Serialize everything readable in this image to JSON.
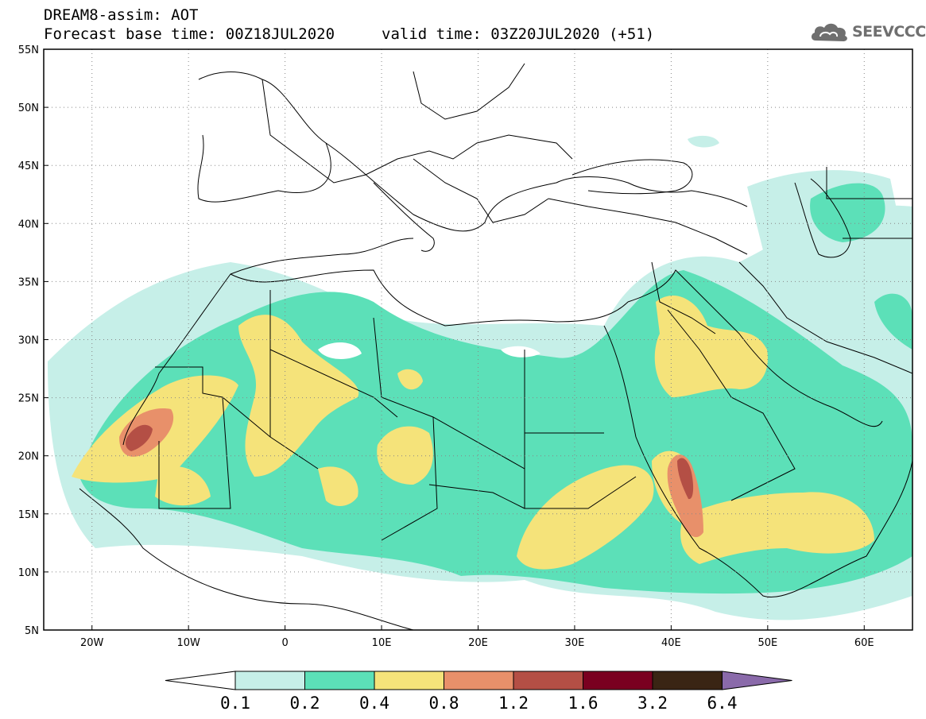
{
  "header": {
    "title": "DREAM8-assim: AOT",
    "forecast_base": "Forecast base time: 00Z18JUL2020",
    "valid_time": "valid time: 03Z20JUL2020 (+51)"
  },
  "logo": {
    "text": "SEEVCCC",
    "icon": "cloud-icon"
  },
  "map": {
    "lon_range": [
      -25,
      65
    ],
    "lat_range": [
      5,
      55
    ],
    "lat_labels": [
      "55N",
      "50N",
      "45N",
      "40N",
      "35N",
      "30N",
      "25N",
      "20N",
      "15N",
      "10N",
      "5N"
    ],
    "lat_values": [
      55,
      50,
      45,
      40,
      35,
      30,
      25,
      20,
      15,
      10,
      5
    ],
    "lon_labels": [
      "20W",
      "10W",
      "0",
      "10E",
      "20E",
      "30E",
      "40E",
      "50E",
      "60E"
    ],
    "lon_values": [
      -20,
      -10,
      0,
      10,
      20,
      30,
      40,
      50,
      60
    ],
    "grid": "dotted"
  },
  "legend": {
    "labels": [
      "0.1",
      "0.2",
      "0.4",
      "0.8",
      "1.2",
      "1.6",
      "3.2",
      "6.4"
    ],
    "colors": [
      "#ffffff",
      "#c6efe8",
      "#5ce0b8",
      "#f5e37a",
      "#e8906a",
      "#b44f45",
      "#7a0020",
      "#3a2514",
      "#8a6aaa"
    ]
  }
}
